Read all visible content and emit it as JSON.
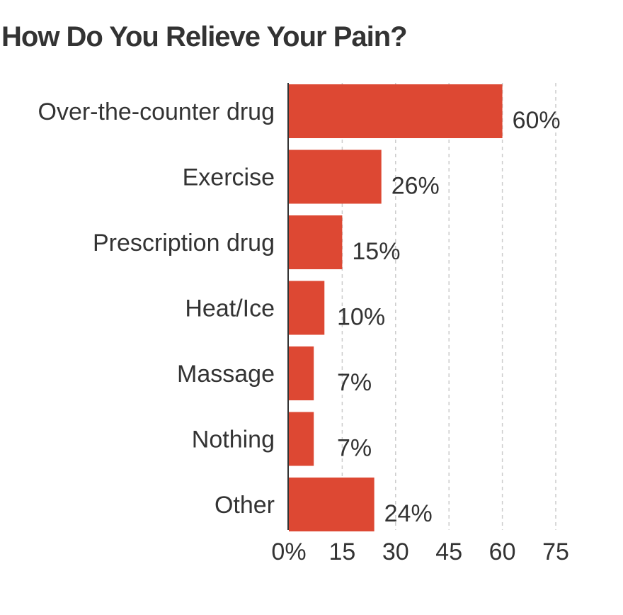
{
  "chart_data": {
    "type": "bar",
    "orientation": "horizontal",
    "title": "How Do You Relieve Your Pain?",
    "categories": [
      "Over-the-counter drug",
      "Exercise",
      "Prescription drug",
      "Heat/Ice",
      "Massage",
      "Nothing",
      "Other"
    ],
    "values": [
      60,
      26,
      15,
      10,
      7,
      7,
      24
    ],
    "value_labels": [
      "60%",
      "26%",
      "15%",
      "10%",
      "7%",
      "7%",
      "24%"
    ],
    "xlim": [
      0,
      75
    ],
    "xticks": [
      0,
      15,
      30,
      45,
      60,
      75
    ],
    "xtick_labels": [
      "0%",
      "15",
      "30",
      "45",
      "60",
      "75"
    ],
    "grid": "vertical-dashed",
    "bar_color": "#dd4833",
    "text_color": "#333333",
    "grid_color": "#cccccc"
  }
}
